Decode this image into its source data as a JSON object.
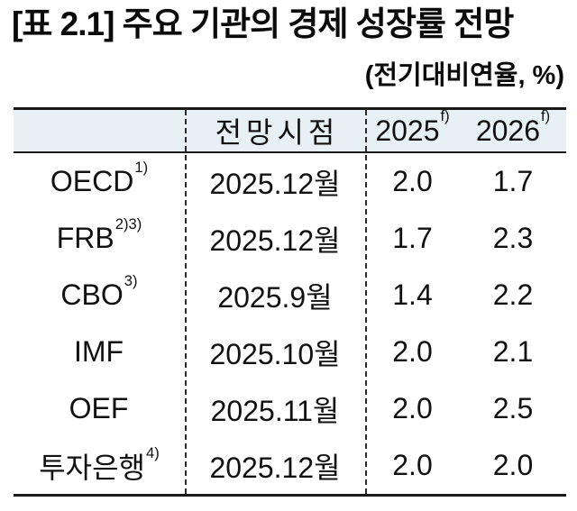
{
  "page": {
    "title": "[표 2.1] 주요 기관의 경제 성장률 전망",
    "unit_note": "(전기대비연율, %)"
  },
  "table": {
    "columns": {
      "org": "",
      "forecast_date": "전망시점",
      "y2025": "2025",
      "y2025_sup": "f)",
      "y2026": "2026",
      "y2026_sup": "f)"
    },
    "rows": [
      {
        "org": "OECD",
        "org_note": "1)",
        "date": "2025.12월",
        "g2025": "2.0",
        "g2026": "1.7"
      },
      {
        "org": "FRB",
        "org_note": "2)3)",
        "date": "2025.12월",
        "g2025": "1.7",
        "g2026": "2.3"
      },
      {
        "org": "CBO",
        "org_note": "3)",
        "date": "2025.9월",
        "g2025": "1.4",
        "g2026": "2.2"
      },
      {
        "org": "IMF",
        "org_note": "",
        "date": "2025.10월",
        "g2025": "2.0",
        "g2026": "2.1"
      },
      {
        "org": "OEF",
        "org_note": "",
        "date": "2025.11월",
        "g2025": "2.0",
        "g2026": "2.5"
      },
      {
        "org": "투자은행",
        "org_note": "4)",
        "date": "2025.12월",
        "g2025": "2.0",
        "g2026": "2.0"
      }
    ]
  },
  "colors": {
    "header_bg": "#e7f1f5",
    "border": "#1a1a1a",
    "text": "#111111"
  }
}
